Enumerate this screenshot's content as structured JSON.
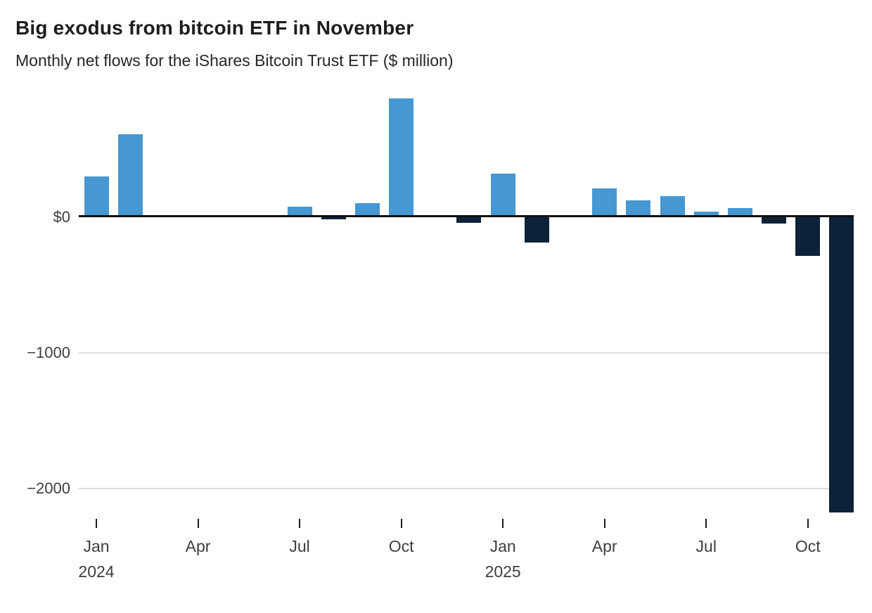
{
  "header": {
    "title": "Big exodus from bitcoin ETF in November",
    "subtitle": "Monthly net flows for the iShares Bitcoin Trust ETF ($ million)"
  },
  "chart_data": {
    "type": "bar",
    "title": "Big exodus from bitcoin ETF in November",
    "subtitle": "Monthly net flows for the iShares Bitcoin Trust ETF ($ million)",
    "unit": "$ million",
    "x": [
      "Jan 2024",
      "Feb 2024",
      "Mar 2024",
      "Apr 2024",
      "May 2024",
      "Jun 2024",
      "Jul 2024",
      "Aug 2024",
      "Sep 2024",
      "Oct 2024",
      "Nov 2024",
      "Dec 2024",
      "Jan 2025",
      "Feb 2025",
      "Mar 2025",
      "Apr 2025",
      "May 2025",
      "Jun 2025",
      "Jul 2025",
      "Aug 2025",
      "Sep 2025",
      "Oct 2025",
      "Nov 2025"
    ],
    "values": [
      300,
      610,
      0,
      0,
      0,
      0,
      80,
      -15,
      105,
      875,
      0,
      -40,
      320,
      -185,
      0,
      215,
      125,
      155,
      40,
      65,
      -45,
      -285,
      -2175
    ],
    "colors": {
      "positive": "#4697d2",
      "negative": "#0b2239",
      "grid": "#dcdcdc",
      "zero_line": "#101010",
      "axis_text": "#3e3e3e"
    },
    "y_ticks": [
      {
        "label": "$0",
        "value": 0
      },
      {
        "label": "−1000",
        "value": -1000
      },
      {
        "label": "−2000",
        "value": -2000
      }
    ],
    "x_ticks": [
      {
        "index": 0,
        "label": "Jan",
        "year": "2024"
      },
      {
        "index": 3,
        "label": "Apr",
        "year": ""
      },
      {
        "index": 6,
        "label": "Jul",
        "year": ""
      },
      {
        "index": 9,
        "label": "Oct",
        "year": ""
      },
      {
        "index": 12,
        "label": "Jan",
        "year": "2025"
      },
      {
        "index": 15,
        "label": "Apr",
        "year": ""
      },
      {
        "index": 18,
        "label": "Jul",
        "year": ""
      },
      {
        "index": 21,
        "label": "Oct",
        "year": ""
      }
    ],
    "ylim": [
      -2350,
      900
    ],
    "grid": "horizontal",
    "legend": "none"
  }
}
